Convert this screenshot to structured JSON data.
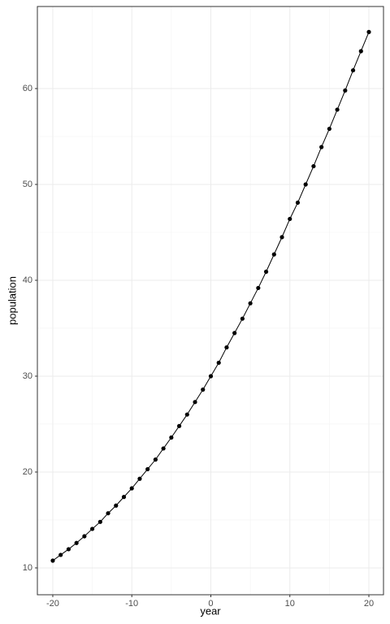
{
  "chart_data": {
    "type": "line",
    "xlabel": "year",
    "ylabel": "population",
    "x": [
      -20,
      -19,
      -18,
      -17,
      -16,
      -15,
      -14,
      -13,
      -12,
      -11,
      -10,
      -9,
      -8,
      -7,
      -6,
      -5,
      -4,
      -3,
      -2,
      -1,
      0,
      1,
      2,
      3,
      4,
      5,
      6,
      7,
      8,
      9,
      10,
      11,
      12,
      13,
      14,
      15,
      16,
      17,
      18,
      19,
      20
    ],
    "series": [
      {
        "color": "#000000",
        "values": [
          10.76,
          11.36,
          11.95,
          12.6,
          13.3,
          14.07,
          14.8,
          15.7,
          16.5,
          17.4,
          18.3,
          19.3,
          20.3,
          21.3,
          22.46,
          23.6,
          24.8,
          26.0,
          27.3,
          28.6,
          30.0,
          31.4,
          33.0,
          34.5,
          36.0,
          37.6,
          39.2,
          40.9,
          42.7,
          44.5,
          46.4,
          48.1,
          50.0,
          51.9,
          53.9,
          55.8,
          57.8,
          59.8,
          61.9,
          63.9,
          65.9
        ]
      }
    ],
    "xlim": [
      -21.95,
      21.85
    ],
    "ylim": [
      7.2,
      68.56
    ],
    "xticks": [
      -20,
      -10,
      0,
      10,
      20
    ],
    "yticks": [
      10,
      20,
      30,
      40,
      50,
      60
    ],
    "grid": true,
    "markers": true
  }
}
